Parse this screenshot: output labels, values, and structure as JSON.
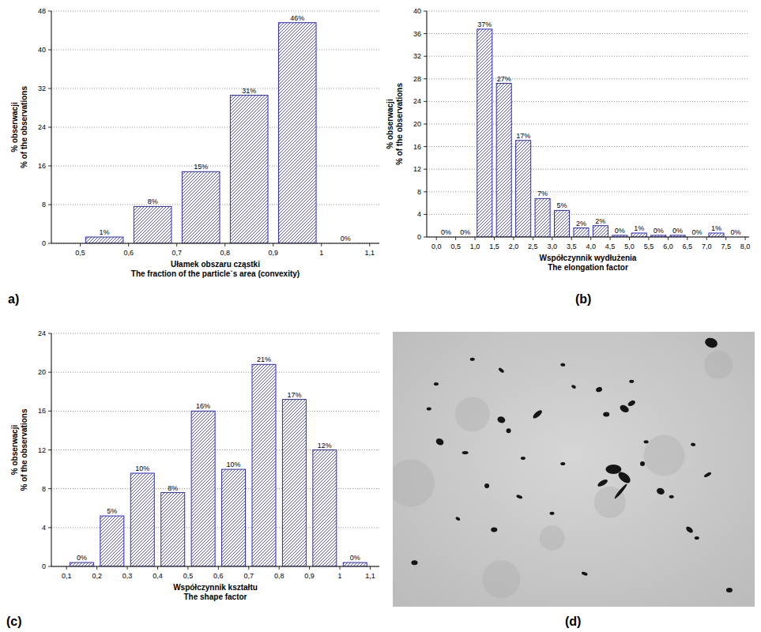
{
  "chart_data": [
    {
      "type": "histogram",
      "panel_label": "a)",
      "xlabel": [
        "Ułamek obszaru cząstki",
        "The fraction of the particle`s area (convexity)"
      ],
      "ylabel": [
        "% obserwacji",
        "% of the observations"
      ],
      "bins": [
        0.5,
        0.6,
        0.7,
        0.8,
        0.9,
        1.0,
        1.1
      ],
      "values": [
        1.3,
        7.6,
        14.8,
        30.6,
        45.6,
        0
      ],
      "value_labels": [
        "1%",
        "8%",
        "15%",
        "31%",
        "46%",
        "0%"
      ],
      "color": "#2b2bc4",
      "xlim": [
        0.44,
        1.12
      ],
      "xticks": [
        {
          "value": 0.5,
          "label": "0,5"
        },
        {
          "value": 0.6,
          "label": "0,6"
        },
        {
          "value": 0.7,
          "label": "0,7"
        },
        {
          "value": 0.8,
          "label": "0,8"
        },
        {
          "value": 0.9,
          "label": "0,9"
        },
        {
          "value": 1,
          "label": "1"
        },
        {
          "value": 1.1,
          "label": "1,1"
        }
      ],
      "ylim": [
        0,
        48
      ],
      "yticks": [
        0,
        8,
        16,
        24,
        32,
        40,
        48
      ],
      "grid": true,
      "data_labels": true
    },
    {
      "type": "histogram",
      "panel_label": "(b)",
      "xlabel": [
        "Współczynnik wydłużenia",
        "The elongation factor"
      ],
      "ylabel": [
        "% obserwacji",
        "% of the observations"
      ],
      "bins": [
        0,
        0.5,
        1,
        1.5,
        2,
        2.5,
        3,
        3.5,
        4,
        4.5,
        5,
        5.5,
        6,
        6.5,
        7,
        7.5,
        8
      ],
      "values": [
        0,
        0,
        36.8,
        27.2,
        17.1,
        6.8,
        4.7,
        1.6,
        2.0,
        0.3,
        0.7,
        0.3,
        0.3,
        0,
        0.7,
        0
      ],
      "value_labels": [
        "0%",
        "0%",
        "37%",
        "27%",
        "17%",
        "7%",
        "5%",
        "2%",
        "2%",
        "0%",
        "1%",
        "0%",
        "0%",
        "0%",
        "1%",
        "0%"
      ],
      "color": "#2b2bc4",
      "xlim": [
        -0.25,
        8.1
      ],
      "xticks": [
        {
          "value": 0,
          "label": "0,0"
        },
        {
          "value": 0.5,
          "label": "0,5"
        },
        {
          "value": 1,
          "label": "1,0"
        },
        {
          "value": 1.5,
          "label": "1,5"
        },
        {
          "value": 2,
          "label": "2,0"
        },
        {
          "value": 2.5,
          "label": "2,5"
        },
        {
          "value": 3,
          "label": "3,0"
        },
        {
          "value": 3.5,
          "label": "3,5"
        },
        {
          "value": 4,
          "label": "4,0"
        },
        {
          "value": 4.5,
          "label": "4,5"
        },
        {
          "value": 5,
          "label": "5,0"
        },
        {
          "value": 5.5,
          "label": "5,5"
        },
        {
          "value": 6,
          "label": "6,0"
        },
        {
          "value": 6.5,
          "label": "6,5"
        },
        {
          "value": 7,
          "label": "7,0"
        },
        {
          "value": 7.5,
          "label": "7,5"
        },
        {
          "value": 8,
          "label": "8,0"
        }
      ],
      "ylim": [
        0,
        40
      ],
      "yticks": [
        0,
        4,
        8,
        12,
        16,
        20,
        24,
        28,
        32,
        36,
        40
      ],
      "grid": true,
      "data_labels": true
    },
    {
      "type": "histogram",
      "panel_label": "(c)",
      "xlabel": [
        "Współczynnik kształtu",
        "The shape factor"
      ],
      "ylabel": [
        "% obserwacji",
        "% of the observations"
      ],
      "bins": [
        0.1,
        0.2,
        0.3,
        0.4,
        0.5,
        0.6,
        0.7,
        0.8,
        0.9,
        1.0,
        1.1
      ],
      "values": [
        0.4,
        5.2,
        9.6,
        7.6,
        16,
        10,
        20.8,
        17.2,
        12,
        0.4
      ],
      "value_labels": [
        "0%",
        "5%",
        "10%",
        "8%",
        "16%",
        "10%",
        "21%",
        "17%",
        "12%",
        "0%"
      ],
      "color": "#2b2bc4",
      "xlim": [
        0.05,
        1.13
      ],
      "xticks": [
        {
          "value": 0.1,
          "label": "0,1"
        },
        {
          "value": 0.2,
          "label": "0,2"
        },
        {
          "value": 0.3,
          "label": "0,3"
        },
        {
          "value": 0.4,
          "label": "0,4"
        },
        {
          "value": 0.5,
          "label": "0,5"
        },
        {
          "value": 0.6,
          "label": "0,6"
        },
        {
          "value": 0.7,
          "label": "0,7"
        },
        {
          "value": 0.8,
          "label": "0,8"
        },
        {
          "value": 0.9,
          "label": "0,9"
        },
        {
          "value": 1,
          "label": "1"
        },
        {
          "value": 1.1,
          "label": "1,1"
        }
      ],
      "ylim": [
        0,
        24
      ],
      "yticks": [
        0,
        4,
        8,
        12,
        16,
        20,
        24
      ],
      "grid": true,
      "data_labels": true
    }
  ],
  "image_panel": {
    "label": "(d)"
  }
}
